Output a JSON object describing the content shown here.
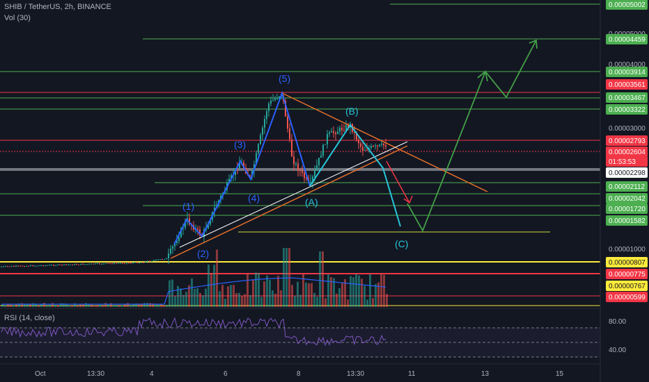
{
  "header": {
    "symbol": "SHIB / TetherUS, 2h, BINANCE",
    "volume": "Vol (30)",
    "rsi": "RSI (14, close)"
  },
  "colors": {
    "background": "#131722",
    "green_line": "#4caf50",
    "red_line": "#f23645",
    "yellow_line": "#ffeb3b",
    "orange_trend": "#e8702a",
    "wave_blue": "#2962ff",
    "wave_cyan": "#26c6da",
    "projection_green": "#43a047",
    "projection_red": "#f23645",
    "rsi_purple": "#7e57c2",
    "candle_up": "#26a69a",
    "candle_down": "#ef5350"
  },
  "chart_data": {
    "type": "candlestick",
    "price_axis_ticks": [
      "0.00005000",
      "0.00004000",
      "0.00003000",
      "0.00001000"
    ],
    "price_tags": [
      {
        "label": "0.00005002",
        "color": "#4caf50"
      },
      {
        "label": "0.00004459",
        "color": "#4caf50"
      },
      {
        "label": "0.00003914",
        "color": "#4caf50"
      },
      {
        "label": "0.00003561",
        "color": "#f23645"
      },
      {
        "label": "0.00003467",
        "color": "#4caf50"
      },
      {
        "label": "0.00003322",
        "color": "#4caf50"
      },
      {
        "label": "0.00002793",
        "color": "#f23645"
      },
      {
        "label": "0.00002604",
        "color": "#f23645"
      },
      {
        "label": "01:53:53",
        "color": "#f23645"
      },
      {
        "label": "0.00002298",
        "color": "#ffffff"
      },
      {
        "label": "0.00002112",
        "color": "#4caf50"
      },
      {
        "label": "0.00002042",
        "color": "#4caf50"
      },
      {
        "label": "0.00001720",
        "color": "#4caf50"
      },
      {
        "label": "0.00001582",
        "color": "#4caf50"
      },
      {
        "label": "0.00000807",
        "color": "#ffeb3b"
      },
      {
        "label": "0.00000775",
        "color": "#f23645"
      },
      {
        "label": "0.00000767",
        "color": "#ffeb3b"
      },
      {
        "label": "0.00000599",
        "color": "#f23645"
      }
    ],
    "time_axis": [
      "Oct",
      "13:30",
      "4",
      "6",
      "8",
      "13:30",
      "11",
      "13",
      "15"
    ],
    "wave_labels": [
      "(1)",
      "(2)",
      "(3)",
      "(4)",
      "(5)",
      "(A)",
      "(B)",
      "(C)"
    ],
    "rsi_ticks": [
      "80.00",
      "40.00"
    ],
    "rsi_levels": [
      70,
      50,
      30
    ]
  }
}
